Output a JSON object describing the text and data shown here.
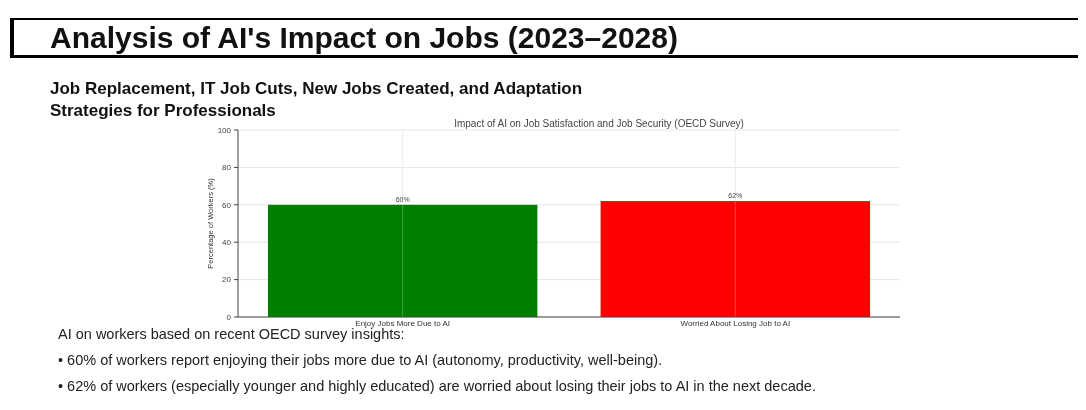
{
  "chart_data": {
    "type": "bar",
    "title": "Analysis of AI's Impact on Jobs (2023–2028)",
    "subtitle": "Job Replacement, IT Job Cuts, New Jobs Created, and Adaptation Strategies for Professionals",
    "ylabel": "Percentage of Workers (%)",
    "categories": [
      "Enjoy Jobs More Due to AI",
      "Worried About Losing Job to AI"
    ],
    "values": [
      60,
      62
    ],
    "colors": [
      "#008000",
      "#ff0000"
    ],
    "value_labels": [
      "60%",
      "62%"
    ],
    "ylim": [
      0,
      100
    ],
    "yticks": [
      0,
      20,
      40,
      60,
      80,
      100
    ],
    "grid": true,
    "annotations": [
      "Impact of AI on Job Satisfaction and Job Security (OECD Survey)",
      "AI on workers based on recent OECD survey insights:",
      "• 60% of workers report enjoying their jobs more due to AI (autonomy, productivity, well-being).",
      "• 62% of workers (especially younger and highly educated) are worried about losing their jobs to AI in the next decade."
    ]
  }
}
